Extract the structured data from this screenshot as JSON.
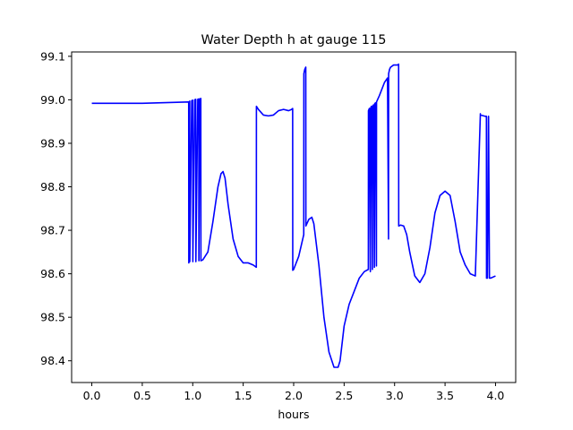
{
  "chart_data": {
    "type": "line",
    "title": "Water Depth h at gauge 115",
    "xlabel": "hours",
    "ylabel": "",
    "xlim": [
      -0.2,
      4.2
    ],
    "ylim": [
      98.35,
      99.11
    ],
    "xticks": [
      0.0,
      0.5,
      1.0,
      1.5,
      2.0,
      2.5,
      3.0,
      3.5,
      4.0
    ],
    "xtick_labels": [
      "0.0",
      "0.5",
      "1.0",
      "1.5",
      "2.0",
      "2.5",
      "3.0",
      "3.5",
      "4.0"
    ],
    "yticks": [
      98.4,
      98.5,
      98.6,
      98.7,
      98.8,
      98.9,
      99.0,
      99.1
    ],
    "ytick_labels": [
      "98.4",
      "98.5",
      "98.6",
      "98.7",
      "98.8",
      "98.9",
      "99.0",
      "99.1"
    ],
    "grid": false,
    "series": [
      {
        "name": "",
        "color": "#0000ff",
        "x": [
          0.0,
          0.5,
          0.96,
          0.961,
          0.97,
          0.971,
          0.99,
          1.0,
          1.001,
          1.02,
          1.03,
          1.031,
          1.05,
          1.06,
          1.061,
          1.07,
          1.08,
          1.081,
          1.1,
          1.15,
          1.2,
          1.25,
          1.28,
          1.3,
          1.32,
          1.35,
          1.4,
          1.45,
          1.5,
          1.55,
          1.6,
          1.63,
          1.631,
          1.65,
          1.7,
          1.75,
          1.8,
          1.85,
          1.9,
          1.95,
          1.98,
          1.99,
          1.991,
          2.0,
          2.05,
          2.1,
          2.101,
          2.11,
          2.12,
          2.121,
          2.15,
          2.18,
          2.2,
          2.25,
          2.3,
          2.35,
          2.4,
          2.44,
          2.46,
          2.5,
          2.55,
          2.6,
          2.65,
          2.7,
          2.74,
          2.741,
          2.75,
          2.76,
          2.761,
          2.77,
          2.78,
          2.781,
          2.79,
          2.8,
          2.801,
          2.81,
          2.82,
          2.821,
          2.85,
          2.9,
          2.93,
          2.94,
          2.941,
          2.95,
          2.96,
          2.961,
          2.99,
          3.03,
          3.04,
          3.041,
          3.06,
          3.09,
          3.12,
          3.15,
          3.2,
          3.25,
          3.3,
          3.35,
          3.4,
          3.45,
          3.5,
          3.55,
          3.6,
          3.65,
          3.7,
          3.75,
          3.8,
          3.85,
          3.851,
          3.9,
          3.91,
          3.911,
          3.92,
          3.93,
          3.931,
          3.94,
          3.95,
          3.951,
          4.0
        ],
        "y": [
          98.992,
          98.992,
          98.995,
          98.625,
          98.997,
          98.628,
          98.998,
          98.999,
          98.628,
          99.0,
          99.001,
          98.628,
          99.001,
          99.002,
          98.63,
          99.002,
          99.003,
          98.63,
          98.632,
          98.65,
          98.72,
          98.8,
          98.83,
          98.835,
          98.82,
          98.76,
          98.68,
          98.64,
          98.625,
          98.625,
          98.62,
          98.615,
          98.985,
          98.978,
          98.965,
          98.963,
          98.965,
          98.975,
          98.978,
          98.975,
          98.978,
          98.98,
          98.608,
          98.61,
          98.64,
          98.69,
          99.06,
          99.07,
          99.075,
          98.71,
          98.725,
          98.73,
          98.715,
          98.62,
          98.5,
          98.42,
          98.385,
          98.385,
          98.4,
          98.48,
          98.53,
          98.56,
          98.59,
          98.605,
          98.61,
          98.975,
          98.98,
          98.605,
          98.98,
          98.985,
          98.61,
          98.985,
          98.988,
          98.615,
          98.99,
          98.993,
          98.618,
          98.995,
          99.01,
          99.04,
          99.05,
          98.68,
          99.06,
          99.07,
          99.075,
          99.075,
          99.08,
          99.08,
          99.082,
          98.71,
          98.712,
          98.71,
          98.69,
          98.65,
          98.595,
          98.58,
          98.6,
          98.66,
          98.74,
          98.78,
          98.79,
          98.78,
          98.72,
          98.65,
          98.62,
          98.6,
          98.595,
          98.968,
          98.965,
          98.962,
          98.962,
          98.59,
          98.59,
          98.96,
          98.962,
          98.59,
          98.59,
          98.59,
          98.595
        ]
      }
    ]
  }
}
